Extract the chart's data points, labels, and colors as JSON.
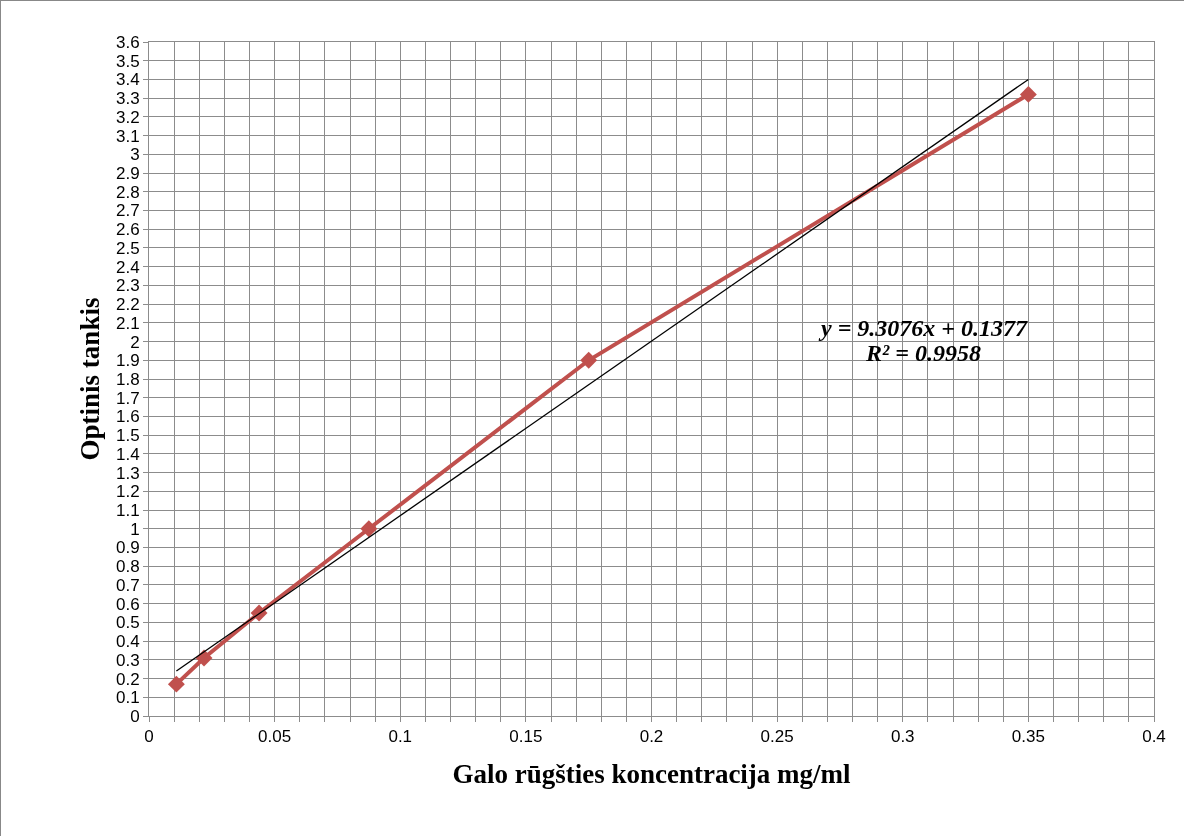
{
  "chart_data": {
    "type": "line",
    "xlabel": "Galo rūgšties koncentracija mg/ml",
    "ylabel": "Optinis tankis",
    "annotations": [
      "y = 9.3076x + 0.1377",
      "R² = 0.9958"
    ],
    "series": [
      {
        "color": "#c0504d",
        "x": [
          0.0109,
          0.0219,
          0.0438,
          0.0875,
          0.175,
          0.35
        ],
        "values": [
          0.17,
          0.31,
          0.55,
          1.0,
          1.9,
          3.32
        ],
        "marker": "diamond",
        "line_style": "solid"
      },
      {
        "color": "#000000",
        "x": [
          0.0109,
          0.35
        ],
        "values": [
          0.24,
          3.4
        ],
        "marker": "none",
        "line_style": "solid"
      }
    ],
    "xlim": [
      0,
      0.4
    ],
    "xticks": [
      0,
      {
        "value": 0.01,
        "label": null
      },
      {
        "value": 0.02,
        "label": null
      },
      {
        "value": 0.03,
        "label": null
      },
      {
        "value": 0.04,
        "label": null
      },
      0.05,
      {
        "value": 0.06,
        "label": null
      },
      {
        "value": 0.07,
        "label": null
      },
      {
        "value": 0.08,
        "label": null
      },
      {
        "value": 0.09,
        "label": null
      },
      0.1,
      {
        "value": 0.11,
        "label": null
      },
      {
        "value": 0.12,
        "label": null
      },
      {
        "value": 0.13,
        "label": null
      },
      {
        "value": 0.14,
        "label": null
      },
      0.15,
      {
        "value": 0.16,
        "label": null
      },
      {
        "value": 0.17,
        "label": null
      },
      {
        "value": 0.18,
        "label": null
      },
      {
        "value": 0.19,
        "label": null
      },
      0.2,
      {
        "value": 0.21,
        "label": null
      },
      {
        "value": 0.22,
        "label": null
      },
      {
        "value": 0.23,
        "label": null
      },
      {
        "value": 0.24,
        "label": null
      },
      0.25,
      {
        "value": 0.26,
        "label": null
      },
      {
        "value": 0.27,
        "label": null
      },
      {
        "value": 0.28,
        "label": null
      },
      {
        "value": 0.29,
        "label": null
      },
      0.3,
      {
        "value": 0.31,
        "label": null
      },
      {
        "value": 0.32,
        "label": null
      },
      {
        "value": 0.33,
        "label": null
      },
      {
        "value": 0.34,
        "label": null
      },
      0.35,
      {
        "value": 0.36,
        "label": null
      },
      {
        "value": 0.37,
        "label": null
      },
      {
        "value": 0.38,
        "label": null
      },
      {
        "value": 0.39,
        "label": null
      },
      0.4
    ],
    "ylim": [
      0,
      3.6
    ],
    "yticks": [
      0,
      0.1,
      0.2,
      0.3,
      0.4,
      0.5,
      0.6,
      0.7,
      0.8,
      0.9,
      1,
      1.1,
      1.2,
      1.3,
      1.4,
      1.5,
      1.6,
      1.7,
      1.8,
      1.9,
      2,
      2.1,
      2.2,
      2.3,
      2.4,
      2.5,
      2.6,
      2.7,
      2.8,
      2.9,
      3,
      3.1,
      3.2,
      3.3,
      3.4,
      3.5,
      3.6
    ],
    "grid": true
  }
}
